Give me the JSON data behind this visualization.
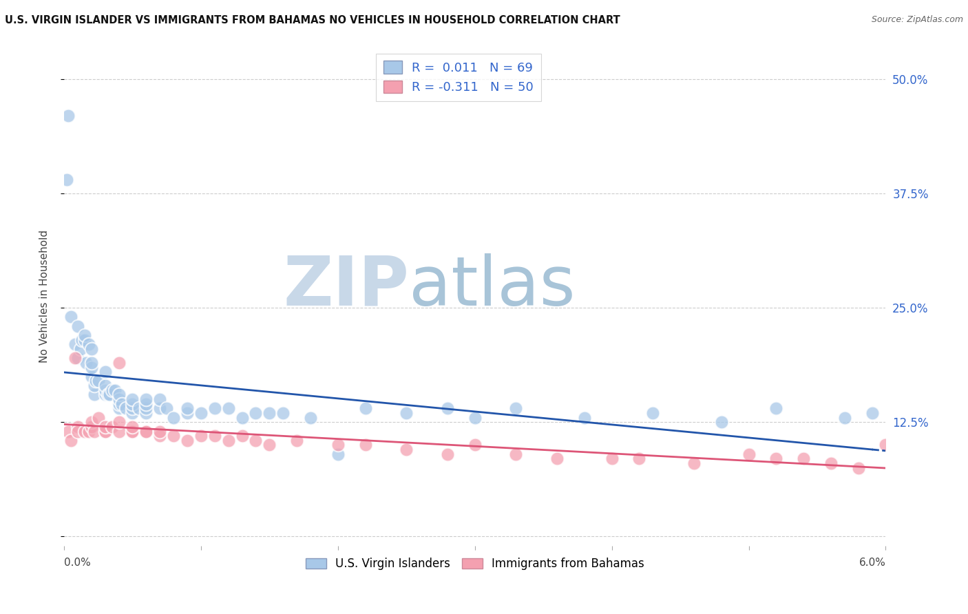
{
  "title": "U.S. VIRGIN ISLANDER VS IMMIGRANTS FROM BAHAMAS NO VEHICLES IN HOUSEHOLD CORRELATION CHART",
  "source": "Source: ZipAtlas.com",
  "ylabel": "No Vehicles in Household",
  "yticks": [
    0.0,
    0.125,
    0.25,
    0.375,
    0.5
  ],
  "ytick_labels": [
    "",
    "12.5%",
    "25.0%",
    "37.5%",
    "50.0%"
  ],
  "xlim": [
    0.0,
    0.06
  ],
  "ylim": [
    -0.01,
    0.535
  ],
  "blue_color": "#a8c8e8",
  "pink_color": "#f4a0b0",
  "blue_line_color": "#2255aa",
  "pink_line_color": "#dd5577",
  "R_blue": 0.011,
  "N_blue": 69,
  "R_pink": -0.311,
  "N_pink": 50,
  "legend_label_blue": "U.S. Virgin Islanders",
  "legend_label_pink": "Immigrants from Bahamas",
  "blue_x": [
    0.0002,
    0.0003,
    0.0005,
    0.0008,
    0.001,
    0.001,
    0.0012,
    0.0013,
    0.0015,
    0.0015,
    0.0016,
    0.0018,
    0.002,
    0.002,
    0.002,
    0.002,
    0.0022,
    0.0022,
    0.0023,
    0.0025,
    0.003,
    0.003,
    0.003,
    0.003,
    0.0032,
    0.0033,
    0.0035,
    0.0037,
    0.004,
    0.004,
    0.004,
    0.004,
    0.0042,
    0.0045,
    0.005,
    0.005,
    0.005,
    0.005,
    0.0055,
    0.006,
    0.006,
    0.006,
    0.006,
    0.007,
    0.007,
    0.0075,
    0.008,
    0.009,
    0.009,
    0.01,
    0.011,
    0.012,
    0.013,
    0.014,
    0.015,
    0.016,
    0.018,
    0.02,
    0.022,
    0.025,
    0.028,
    0.03,
    0.033,
    0.038,
    0.043,
    0.048,
    0.052,
    0.057,
    0.059
  ],
  "blue_y": [
    0.39,
    0.46,
    0.24,
    0.21,
    0.23,
    0.195,
    0.205,
    0.215,
    0.215,
    0.22,
    0.19,
    0.21,
    0.175,
    0.185,
    0.19,
    0.205,
    0.155,
    0.165,
    0.17,
    0.17,
    0.155,
    0.16,
    0.165,
    0.18,
    0.155,
    0.155,
    0.16,
    0.16,
    0.14,
    0.145,
    0.15,
    0.155,
    0.145,
    0.14,
    0.135,
    0.14,
    0.145,
    0.15,
    0.14,
    0.135,
    0.14,
    0.145,
    0.15,
    0.14,
    0.15,
    0.14,
    0.13,
    0.135,
    0.14,
    0.135,
    0.14,
    0.14,
    0.13,
    0.135,
    0.135,
    0.135,
    0.13,
    0.09,
    0.14,
    0.135,
    0.14,
    0.13,
    0.14,
    0.13,
    0.135,
    0.125,
    0.14,
    0.13,
    0.135
  ],
  "pink_x": [
    0.0003,
    0.0005,
    0.0008,
    0.001,
    0.001,
    0.0015,
    0.0018,
    0.002,
    0.002,
    0.0022,
    0.0025,
    0.003,
    0.003,
    0.003,
    0.0035,
    0.004,
    0.004,
    0.004,
    0.005,
    0.005,
    0.005,
    0.006,
    0.006,
    0.007,
    0.007,
    0.008,
    0.009,
    0.01,
    0.011,
    0.012,
    0.013,
    0.014,
    0.015,
    0.017,
    0.02,
    0.022,
    0.025,
    0.028,
    0.03,
    0.033,
    0.036,
    0.04,
    0.042,
    0.046,
    0.05,
    0.052,
    0.054,
    0.056,
    0.058,
    0.06
  ],
  "pink_y": [
    0.115,
    0.105,
    0.195,
    0.12,
    0.115,
    0.115,
    0.115,
    0.12,
    0.125,
    0.115,
    0.13,
    0.115,
    0.115,
    0.12,
    0.12,
    0.115,
    0.125,
    0.19,
    0.115,
    0.115,
    0.12,
    0.115,
    0.115,
    0.11,
    0.115,
    0.11,
    0.105,
    0.11,
    0.11,
    0.105,
    0.11,
    0.105,
    0.1,
    0.105,
    0.1,
    0.1,
    0.095,
    0.09,
    0.1,
    0.09,
    0.085,
    0.085,
    0.085,
    0.08,
    0.09,
    0.085,
    0.085,
    0.08,
    0.075,
    0.1
  ],
  "background_color": "#ffffff",
  "grid_color": "#cccccc",
  "title_fontsize": 10.5,
  "axis_label_fontsize": 11,
  "tick_fontsize": 12,
  "watermark_zip": "ZIP",
  "watermark_atlas": "atlas",
  "watermark_zip_color": "#c8d8e8",
  "watermark_atlas_color": "#a8c4d8"
}
